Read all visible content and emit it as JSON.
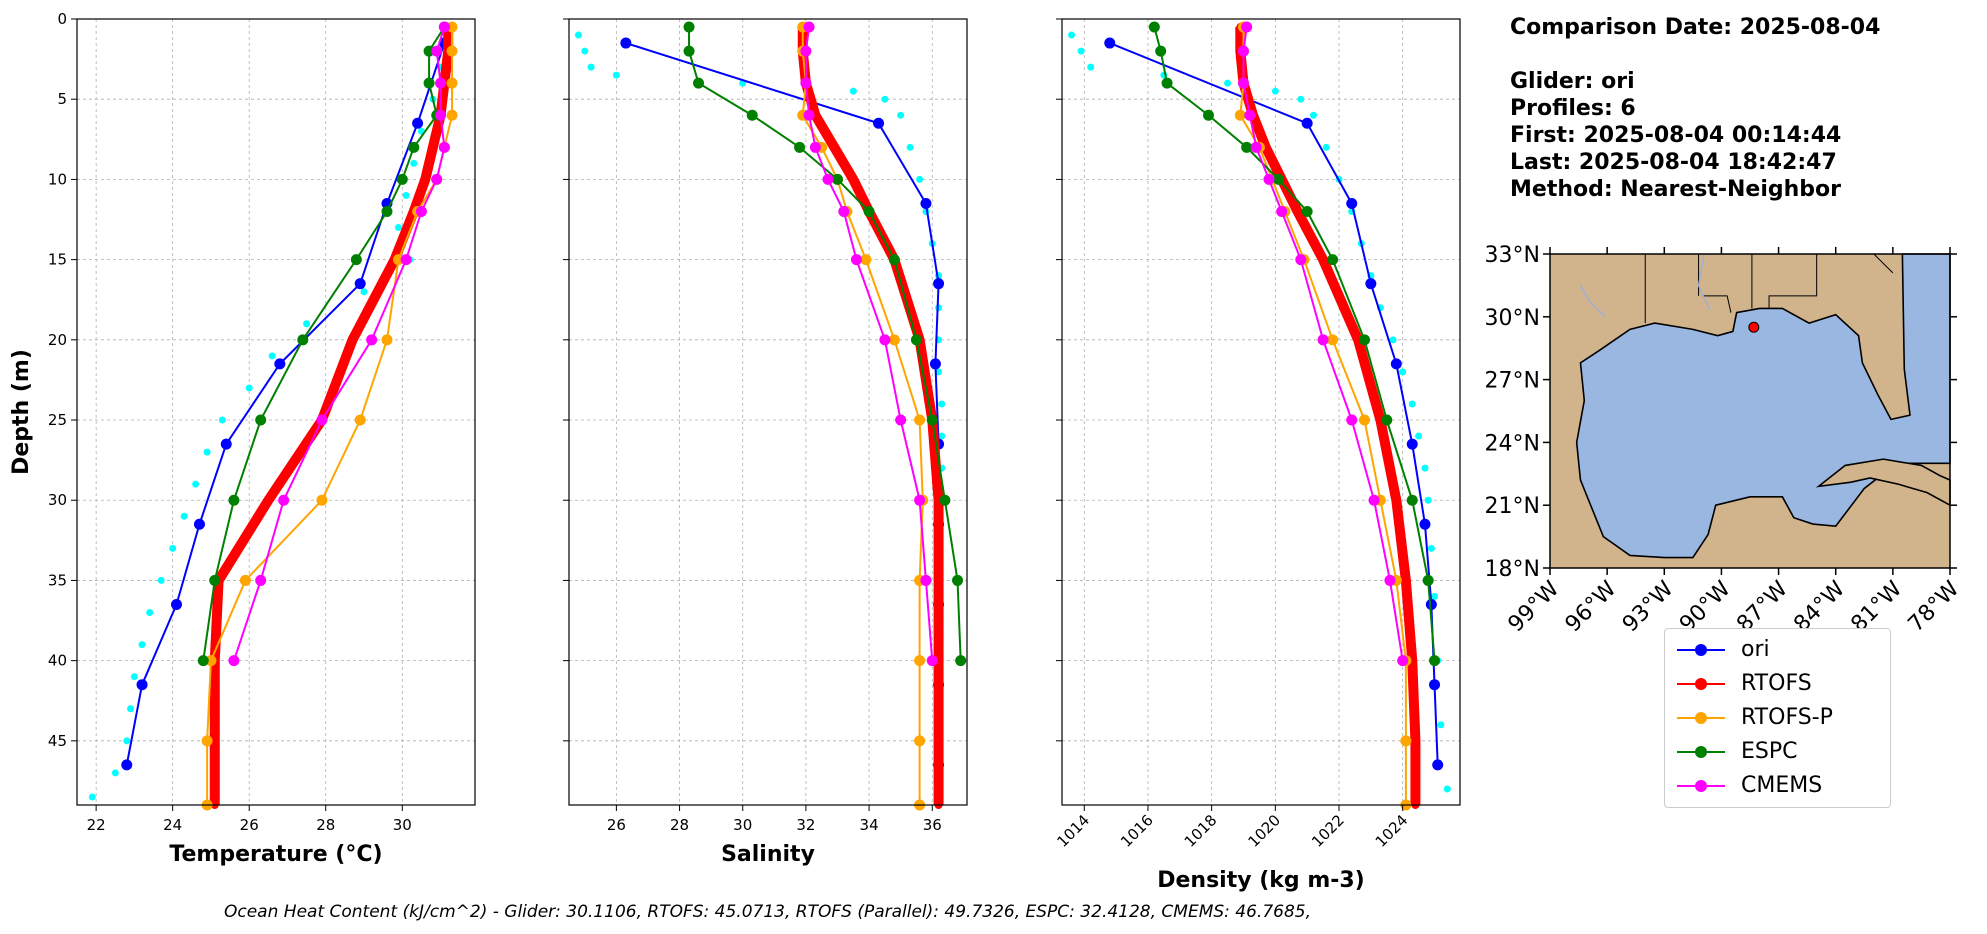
{
  "info": {
    "date": "Comparison Date: 2025-08-04",
    "glider": "Glider: ori",
    "profiles": "Profiles: 6",
    "first": "First: 2025-08-04 00:14:44",
    "last": "Last: 2025-08-04 18:42:47",
    "method": "Method: Nearest-Neighbor"
  },
  "footer": "Ocean Heat Content (kJ/cm^2) - Glider: 30.1106,  RTOFS: 45.0713,  RTOFS (Parallel): 49.7326,  ESPC: 32.4128,  CMEMS: 46.7685,",
  "legend": [
    {
      "name": "ori",
      "color": "#0000ff"
    },
    {
      "name": "RTOFS",
      "color": "#ff0000"
    },
    {
      "name": "RTOFS-P",
      "color": "#ffa500"
    },
    {
      "name": "ESPC",
      "color": "#008000"
    },
    {
      "name": "CMEMS",
      "color": "#ff00ff"
    }
  ],
  "map": {
    "lat_labels": [
      "33°N",
      "30°N",
      "27°N",
      "24°N",
      "21°N",
      "18°N"
    ],
    "lon_labels": [
      "99°W",
      "96°W",
      "93°W",
      "90°W",
      "87°W",
      "84°W",
      "81°W",
      "78°W"
    ],
    "glider_position": {
      "lon": -88.3,
      "lat": 29.5
    },
    "land_color": "#d2b48c",
    "ocean_color": "#99b7e1"
  },
  "chart_data": [
    {
      "type": "line",
      "xlabel": "Temperature (°C)",
      "ylabel": "Depth (m)",
      "xlim": [
        21.5,
        31.9
      ],
      "ylim": [
        49,
        0
      ],
      "xticks": [
        22,
        24,
        26,
        28,
        30
      ],
      "yticks": [
        0,
        5,
        10,
        15,
        20,
        25,
        30,
        35,
        40,
        45
      ],
      "grid": true,
      "scatter": {
        "name": "glider obs",
        "color": "#00ffff",
        "points": [
          [
            31.2,
            1
          ],
          [
            31.0,
            3
          ],
          [
            30.8,
            5
          ],
          [
            30.5,
            7
          ],
          [
            30.3,
            9
          ],
          [
            30.1,
            11
          ],
          [
            29.9,
            13
          ],
          [
            30.2,
            15
          ],
          [
            29.0,
            17
          ],
          [
            27.5,
            19
          ],
          [
            26.6,
            21
          ],
          [
            26.0,
            23
          ],
          [
            25.3,
            25
          ],
          [
            24.9,
            27
          ],
          [
            24.6,
            29
          ],
          [
            24.3,
            31
          ],
          [
            24.0,
            33
          ],
          [
            23.7,
            35
          ],
          [
            23.4,
            37
          ],
          [
            23.2,
            39
          ],
          [
            23.0,
            41
          ],
          [
            22.9,
            43
          ],
          [
            22.8,
            45
          ],
          [
            22.5,
            47
          ],
          [
            21.9,
            48.5
          ]
        ]
      },
      "series": [
        {
          "name": "ori",
          "color": "#0000ff",
          "width": 2,
          "depth": [
            1.5,
            6.5,
            11.5,
            16.5,
            21.5,
            26.5,
            31.5,
            36.5,
            41.5,
            46.5
          ],
          "values": [
            31.1,
            30.4,
            29.6,
            28.9,
            26.8,
            25.4,
            24.7,
            24.1,
            23.2,
            22.8
          ]
        },
        {
          "name": "RTOFS",
          "color": "#ff0000",
          "width": 10,
          "depth": [
            0.5,
            2,
            4,
            6,
            8,
            10,
            12,
            15,
            20,
            25,
            30,
            35,
            40,
            45,
            49
          ],
          "values": [
            31.2,
            31.2,
            31.1,
            31.0,
            30.8,
            30.6,
            30.3,
            29.8,
            28.7,
            27.9,
            26.5,
            25.2,
            25.1,
            25.1,
            25.1
          ]
        },
        {
          "name": "RTOFS-P",
          "color": "#ffa500",
          "width": 2,
          "depth": [
            0.5,
            2,
            4,
            6,
            8,
            10,
            12,
            15,
            20,
            25,
            30,
            35,
            40,
            45,
            49
          ],
          "values": [
            31.3,
            31.3,
            31.3,
            31.3,
            31.1,
            30.9,
            30.4,
            29.9,
            29.6,
            28.9,
            27.9,
            25.9,
            25.0,
            24.9,
            24.9
          ]
        },
        {
          "name": "ESPC",
          "color": "#008000",
          "width": 2,
          "depth": [
            0.5,
            2,
            4,
            6,
            8,
            10,
            12,
            15,
            20,
            25,
            30,
            35,
            40
          ],
          "values": [
            31.1,
            30.7,
            30.7,
            30.9,
            30.3,
            30.0,
            29.6,
            28.8,
            27.4,
            26.3,
            25.6,
            25.1,
            24.8
          ]
        },
        {
          "name": "CMEMS",
          "color": "#ff00ff",
          "width": 2,
          "depth": [
            0.5,
            2,
            4,
            6,
            8,
            10,
            12,
            15,
            20,
            25,
            30,
            35,
            40
          ],
          "values": [
            31.1,
            30.9,
            31.0,
            31.0,
            31.1,
            30.9,
            30.5,
            30.1,
            29.2,
            27.9,
            26.9,
            26.3,
            25.6
          ]
        }
      ]
    },
    {
      "type": "line",
      "xlabel": "Salinity",
      "xlim": [
        24.5,
        37.1
      ],
      "ylim": [
        49,
        0
      ],
      "xticks": [
        26,
        28,
        30,
        32,
        34,
        36
      ],
      "yticks": [
        0,
        5,
        10,
        15,
        20,
        25,
        30,
        35,
        40,
        45
      ],
      "grid": true,
      "scatter": {
        "name": "glider obs",
        "color": "#00ffff",
        "points": [
          [
            24.8,
            1
          ],
          [
            25.0,
            2
          ],
          [
            25.2,
            3
          ],
          [
            26.0,
            3.5
          ],
          [
            30.0,
            4
          ],
          [
            33.5,
            4.5
          ],
          [
            34.5,
            5
          ],
          [
            35.0,
            6
          ],
          [
            35.3,
            8
          ],
          [
            35.6,
            10
          ],
          [
            35.8,
            12
          ],
          [
            36.0,
            14
          ],
          [
            36.2,
            16
          ],
          [
            36.2,
            18
          ],
          [
            36.2,
            20
          ],
          [
            36.2,
            22
          ],
          [
            36.3,
            24
          ],
          [
            36.3,
            26
          ],
          [
            36.3,
            28
          ],
          [
            36.2,
            30
          ],
          [
            36.2,
            33
          ],
          [
            36.2,
            36
          ],
          [
            36.2,
            40
          ],
          [
            36.2,
            44
          ],
          [
            36.2,
            48
          ]
        ]
      },
      "series": [
        {
          "name": "ori",
          "color": "#0000ff",
          "width": 2,
          "depth": [
            1.5,
            6.5,
            11.5,
            16.5,
            21.5,
            26.5,
            31.5,
            36.5,
            41.5,
            46.5
          ],
          "values": [
            26.3,
            34.3,
            35.8,
            36.2,
            36.1,
            36.2,
            36.2,
            36.2,
            36.2,
            36.2
          ]
        },
        {
          "name": "RTOFS",
          "color": "#ff0000",
          "width": 10,
          "depth": [
            0.5,
            2,
            4,
            6,
            8,
            10,
            12,
            15,
            20,
            25,
            30,
            35,
            40,
            45,
            49
          ],
          "values": [
            31.9,
            31.9,
            32.0,
            32.3,
            32.9,
            33.5,
            34.0,
            34.8,
            35.6,
            36.0,
            36.2,
            36.2,
            36.2,
            36.2,
            36.2
          ]
        },
        {
          "name": "RTOFS-P",
          "color": "#ffa500",
          "width": 2,
          "depth": [
            0.5,
            2,
            4,
            6,
            8,
            10,
            12,
            15,
            20,
            25,
            30,
            35,
            40,
            45,
            49
          ],
          "values": [
            31.9,
            31.9,
            32.0,
            31.9,
            32.5,
            33.0,
            33.3,
            33.9,
            34.8,
            35.6,
            35.7,
            35.6,
            35.6,
            35.6,
            35.6
          ]
        },
        {
          "name": "ESPC",
          "color": "#008000",
          "width": 2,
          "depth": [
            0.5,
            2,
            4,
            6,
            8,
            10,
            12,
            15,
            20,
            25,
            30,
            35,
            40
          ],
          "values": [
            28.3,
            28.3,
            28.6,
            30.3,
            31.8,
            33.0,
            34.0,
            34.8,
            35.5,
            36.0,
            36.4,
            36.8,
            36.9
          ]
        },
        {
          "name": "CMEMS",
          "color": "#ff00ff",
          "width": 2,
          "depth": [
            0.5,
            2,
            4,
            6,
            8,
            10,
            12,
            15,
            20,
            25,
            30,
            35,
            40
          ],
          "values": [
            32.1,
            32.0,
            32.0,
            32.1,
            32.3,
            32.7,
            33.2,
            33.6,
            34.5,
            35.0,
            35.6,
            35.8,
            36.0
          ]
        }
      ]
    },
    {
      "type": "line",
      "xlabel": "Density (kg m-3)",
      "xlim": [
        1013.3,
        1025.8
      ],
      "ylim": [
        49,
        0
      ],
      "xticks": [
        1014,
        1016,
        1018,
        1020,
        1022,
        1024
      ],
      "yticks": [
        0,
        5,
        10,
        15,
        20,
        25,
        30,
        35,
        40,
        45
      ],
      "grid": true,
      "scatter": {
        "name": "glider obs",
        "color": "#00ffff",
        "points": [
          [
            1013.6,
            1
          ],
          [
            1013.9,
            2
          ],
          [
            1014.2,
            3
          ],
          [
            1016.5,
            3.5
          ],
          [
            1018.5,
            4
          ],
          [
            1020.0,
            4.5
          ],
          [
            1020.8,
            5
          ],
          [
            1021.2,
            6
          ],
          [
            1021.6,
            8
          ],
          [
            1022.0,
            10
          ],
          [
            1022.4,
            12
          ],
          [
            1022.7,
            14
          ],
          [
            1023.0,
            16
          ],
          [
            1023.3,
            18
          ],
          [
            1023.7,
            20
          ],
          [
            1024.0,
            22
          ],
          [
            1024.3,
            24
          ],
          [
            1024.5,
            26
          ],
          [
            1024.7,
            28
          ],
          [
            1024.8,
            30
          ],
          [
            1024.9,
            33
          ],
          [
            1025.0,
            36
          ],
          [
            1025.1,
            40
          ],
          [
            1025.2,
            44
          ],
          [
            1025.4,
            48
          ]
        ]
      },
      "series": [
        {
          "name": "ori",
          "color": "#0000ff",
          "width": 2,
          "depth": [
            1.5,
            6.5,
            11.5,
            16.5,
            21.5,
            26.5,
            31.5,
            36.5,
            41.5,
            46.5
          ],
          "values": [
            1014.8,
            1021.0,
            1022.4,
            1023.0,
            1023.8,
            1024.3,
            1024.7,
            1024.9,
            1025.0,
            1025.1
          ]
        },
        {
          "name": "RTOFS",
          "color": "#ff0000",
          "width": 10,
          "depth": [
            0.5,
            2,
            4,
            6,
            8,
            10,
            12,
            15,
            20,
            25,
            30,
            35,
            40,
            45,
            49
          ],
          "values": [
            1018.9,
            1018.9,
            1019.0,
            1019.3,
            1019.7,
            1020.2,
            1020.7,
            1021.5,
            1022.6,
            1023.3,
            1023.8,
            1024.1,
            1024.3,
            1024.4,
            1024.4
          ]
        },
        {
          "name": "RTOFS-P",
          "color": "#ffa500",
          "width": 2,
          "depth": [
            0.5,
            2,
            4,
            6,
            8,
            10,
            12,
            15,
            20,
            25,
            30,
            35,
            40,
            45,
            49
          ],
          "values": [
            1019.0,
            1019.0,
            1019.0,
            1018.9,
            1019.5,
            1019.9,
            1020.3,
            1020.9,
            1021.8,
            1022.8,
            1023.3,
            1023.8,
            1024.1,
            1024.1,
            1024.1
          ]
        },
        {
          "name": "ESPC",
          "color": "#008000",
          "width": 2,
          "depth": [
            0.5,
            2,
            4,
            6,
            8,
            10,
            12,
            15,
            20,
            25,
            30,
            35,
            40
          ],
          "values": [
            1016.2,
            1016.4,
            1016.6,
            1017.9,
            1019.1,
            1020.1,
            1021.0,
            1021.8,
            1022.8,
            1023.5,
            1024.3,
            1024.8,
            1025.0
          ]
        },
        {
          "name": "CMEMS",
          "color": "#ff00ff",
          "width": 2,
          "depth": [
            0.5,
            2,
            4,
            6,
            8,
            10,
            12,
            15,
            20,
            25,
            30,
            35,
            40
          ],
          "values": [
            1019.1,
            1019.0,
            1019.0,
            1019.2,
            1019.4,
            1019.8,
            1020.2,
            1020.8,
            1021.5,
            1022.4,
            1023.1,
            1023.6,
            1024.0
          ]
        }
      ]
    }
  ]
}
